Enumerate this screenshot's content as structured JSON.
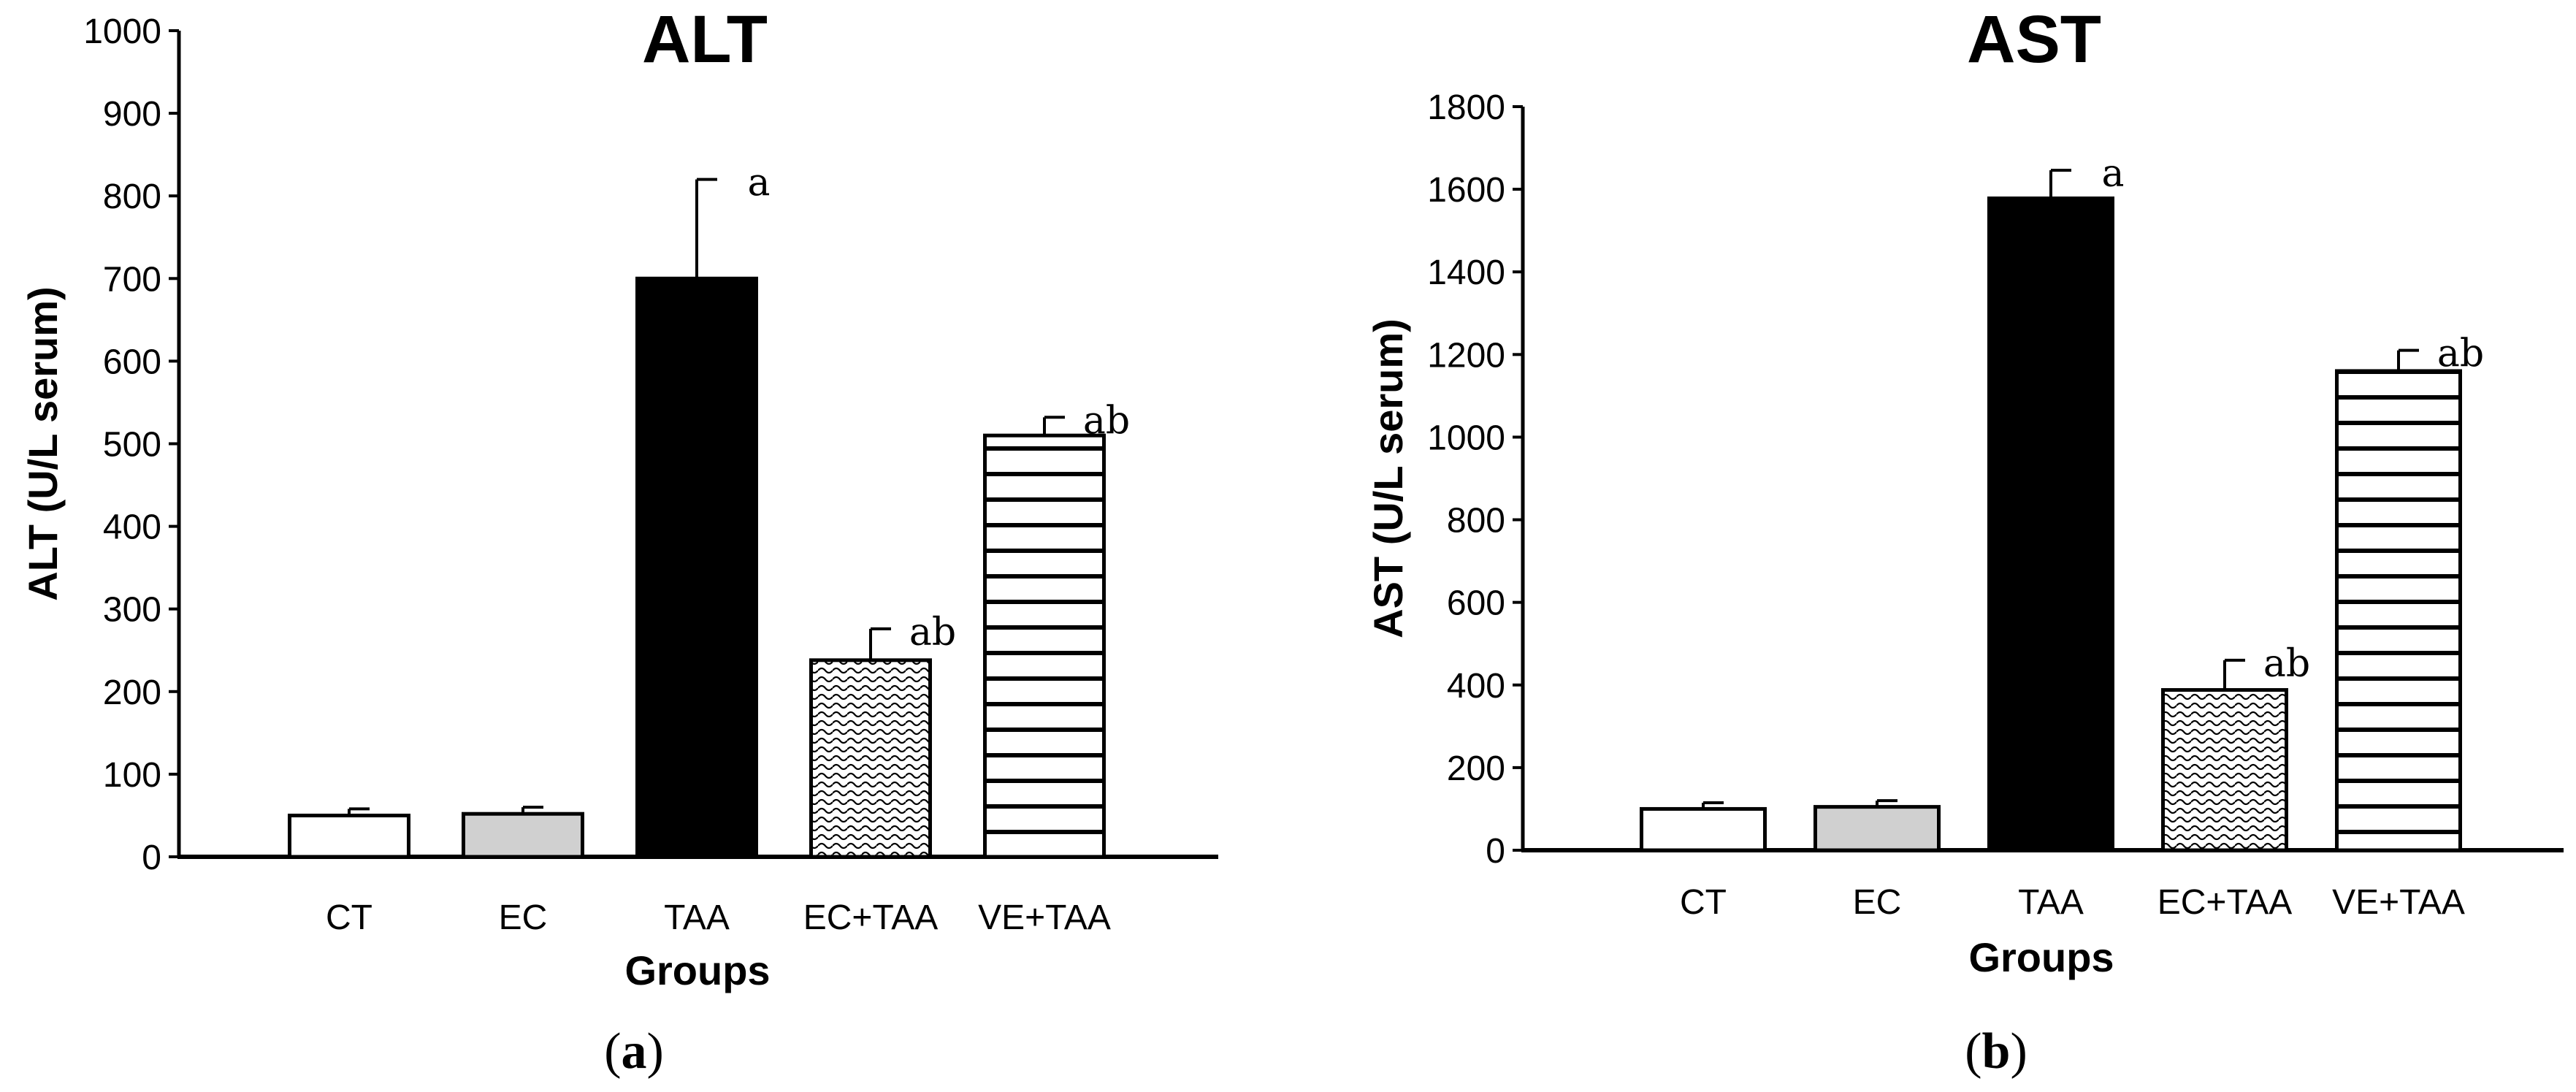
{
  "chart_data": [
    {
      "type": "bar",
      "title": "ALT",
      "ylabel": "ALT (U/L serum)",
      "xlabel": "Groups",
      "panel_label": "a",
      "ylim": [
        0,
        1000
      ],
      "yticks": [
        0,
        100,
        200,
        300,
        400,
        500,
        600,
        700,
        800,
        900,
        1000
      ],
      "categories": [
        "CT",
        "EC",
        "TAA",
        "EC+TAA",
        "VE+TAA"
      ],
      "values": [
        50,
        52,
        700,
        238,
        510
      ],
      "errors": [
        8,
        8,
        120,
        38,
        22
      ],
      "significance": [
        "",
        "",
        "a",
        "ab",
        "ab"
      ],
      "fills": [
        "white",
        "gray",
        "black",
        "wavy",
        "horizontal-lines"
      ],
      "grid": false
    },
    {
      "type": "bar",
      "title": "AST",
      "ylabel": "AST (U/L serum)",
      "xlabel": "Groups",
      "panel_label": "b",
      "ylim": [
        0,
        1800
      ],
      "yticks": [
        0,
        200,
        400,
        600,
        800,
        1000,
        1200,
        1400,
        1600,
        1800
      ],
      "categories": [
        "CT",
        "EC",
        "TAA",
        "EC+TAA",
        "VE+TAA"
      ],
      "values": [
        100,
        105,
        1578,
        388,
        1160
      ],
      "errors": [
        15,
        15,
        68,
        72,
        50
      ],
      "significance": [
        "",
        "",
        "a",
        "ab",
        "ab"
      ],
      "fills": [
        "white",
        "gray",
        "black",
        "wavy",
        "horizontal-lines"
      ],
      "grid": false
    }
  ],
  "colors": {
    "bar_stroke": "#000000",
    "gray_fill": "#d0d0d0",
    "black_fill": "#000000"
  }
}
